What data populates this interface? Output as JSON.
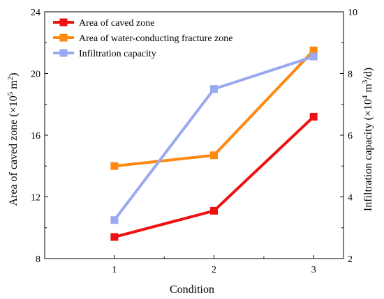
{
  "chart_data": {
    "type": "line",
    "xlabel": "Condition",
    "x": [
      1,
      2,
      3
    ],
    "xticks": [
      "1",
      "2",
      "3"
    ],
    "xlim": [
      0.3,
      3.3
    ],
    "y_left": {
      "label_prefix": "Area of caved zone (×10",
      "label_exp": "5",
      "label_mid": " m",
      "label_exp2": "2",
      "label_suffix": ")",
      "lim": [
        8,
        24
      ],
      "ticks": [
        8,
        12,
        16,
        20,
        24
      ]
    },
    "y_right": {
      "label_prefix": "Infiltration capacity (×10",
      "label_exp": "4",
      "label_mid": " m",
      "label_exp2": "3",
      "label_suffix": "/d)",
      "lim": [
        2,
        10
      ],
      "ticks": [
        2,
        4,
        6,
        8,
        10
      ]
    },
    "series": [
      {
        "name": "Area of caved zone",
        "axis": "left",
        "color": "#ee1111",
        "values": [
          9.4,
          11.1,
          17.2
        ]
      },
      {
        "name": "Area of water-conducting fracture zone",
        "axis": "left",
        "color": "#ff8811",
        "values": [
          14.0,
          14.7,
          21.5
        ]
      },
      {
        "name": "Infiltration capacity",
        "axis": "right",
        "color": "#99aaee",
        "values": [
          3.25,
          7.5,
          8.55
        ]
      }
    ],
    "legend_position": "top-left",
    "grid": false
  }
}
